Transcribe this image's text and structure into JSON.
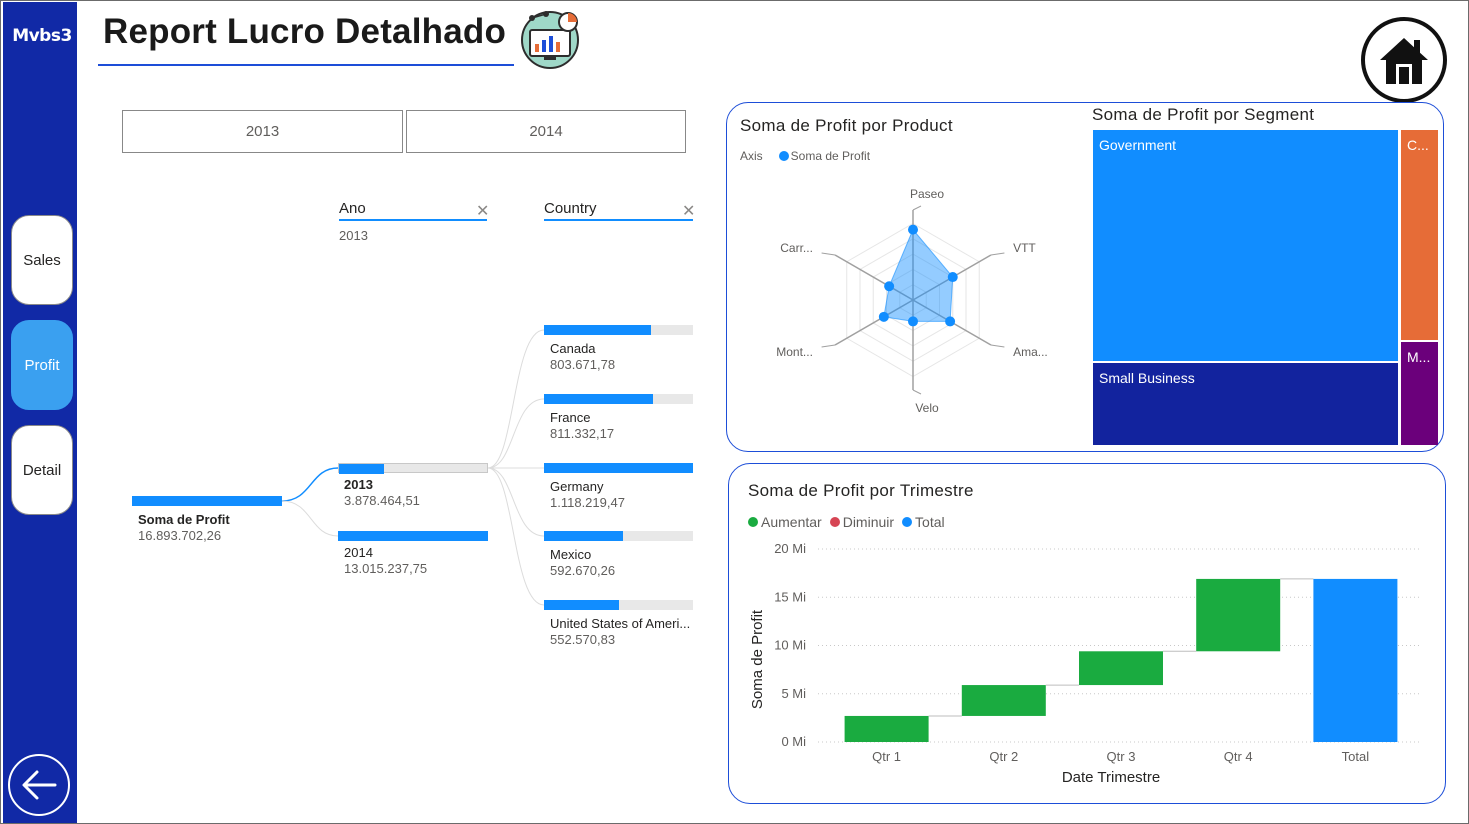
{
  "app": {
    "brand": "Mvbs3",
    "title": "Report Lucro Detalhado"
  },
  "nav": {
    "items": [
      {
        "label": "Sales",
        "active": false
      },
      {
        "label": "Profit",
        "active": true
      },
      {
        "label": "Detail",
        "active": false
      }
    ],
    "back_icon": "arrow-left-icon",
    "home_icon": "home-icon"
  },
  "year_slicer": {
    "options": [
      "2013",
      "2014"
    ]
  },
  "decomposition_tree": {
    "root": {
      "label": "Soma de Profit",
      "value": "16.893.702,26"
    },
    "levels": [
      {
        "header": "Ano",
        "selected": "2013"
      },
      {
        "header": "Country",
        "selected": ""
      }
    ],
    "years": [
      {
        "label": "2013",
        "value": "3.878.464,51",
        "fraction": 0.3,
        "selected": true
      },
      {
        "label": "2014",
        "value": "13.015.237,75",
        "fraction": 1.0,
        "selected": false
      }
    ],
    "countries": [
      {
        "label": "Canada",
        "value": "803.671,78",
        "fraction": 0.72
      },
      {
        "label": "France",
        "value": "811.332,17",
        "fraction": 0.73
      },
      {
        "label": "Germany",
        "value": "1.118.219,47",
        "fraction": 1.0
      },
      {
        "label": "Mexico",
        "value": "592.670,26",
        "fraction": 0.53
      },
      {
        "label": "United States of Ameri...",
        "value": "552.570,83",
        "fraction": 0.5
      }
    ]
  },
  "radar": {
    "title": "Soma de Profit por Product",
    "legend_axis": "Axis",
    "legend_series": "Soma de Profit",
    "axes": [
      "Paseo",
      "VTT",
      "Ama...",
      "Velo",
      "Mont...",
      "Carr..."
    ],
    "values_fraction": [
      0.92,
      0.6,
      0.56,
      0.28,
      0.44,
      0.36
    ],
    "color": "#118dff"
  },
  "treemap": {
    "title": "Soma de Profit por Segment",
    "segments": [
      {
        "label": "Government",
        "color": "#118dff"
      },
      {
        "label": "Small Business",
        "color": "#12239e"
      },
      {
        "label": "C...",
        "color": "#e66c37"
      },
      {
        "label": "M...",
        "color": "#6b007b"
      }
    ]
  },
  "waterfall": {
    "title": "Soma de Profit por Trimestre",
    "legend": [
      {
        "label": "Aumentar",
        "color": "#1aab40"
      },
      {
        "label": "Diminuir",
        "color": "#d64554"
      },
      {
        "label": "Total",
        "color": "#118dff"
      }
    ],
    "xlabel": "Date Trimestre",
    "ylabel": "Soma de Profit"
  },
  "chart_data": {
    "type": "bar",
    "subtype": "waterfall",
    "title": "Soma de Profit por Trimestre",
    "categories": [
      "Qtr 1",
      "Qtr 2",
      "Qtr 3",
      "Qtr 4",
      "Total"
    ],
    "series": [
      {
        "name": "Aumentar",
        "values": [
          2.7,
          3.2,
          3.5,
          7.5,
          null
        ]
      },
      {
        "name": "Total",
        "values": [
          null,
          null,
          null,
          null,
          16.9
        ]
      }
    ],
    "xlabel": "Date Trimestre",
    "ylabel": "Soma de Profit",
    "ylim": [
      0,
      20
    ],
    "yticks": [
      "0 Mi",
      "5 Mi",
      "10 Mi",
      "15 Mi",
      "20 Mi"
    ],
    "grid": true,
    "legend_position": "top-left"
  }
}
